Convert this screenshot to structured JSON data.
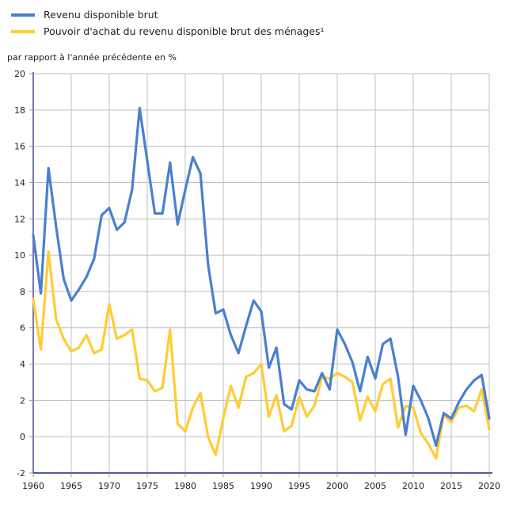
{
  "chart_data": {
    "type": "line",
    "title": "",
    "xlabel": "",
    "ylabel": "par rapport à l'année précédente en %",
    "xlim": [
      1960,
      2020
    ],
    "ylim": [
      -2,
      20
    ],
    "x_ticks": [
      1960,
      1965,
      1970,
      1975,
      1980,
      1985,
      1990,
      1995,
      2000,
      2005,
      2010,
      2015,
      2020
    ],
    "y_ticks": [
      -2,
      0,
      2,
      4,
      6,
      8,
      10,
      12,
      14,
      16,
      18,
      20
    ],
    "grid": true,
    "legend_position": "top-left",
    "x": [
      1960,
      1961,
      1962,
      1963,
      1964,
      1965,
      1966,
      1967,
      1968,
      1969,
      1970,
      1971,
      1972,
      1973,
      1974,
      1975,
      1976,
      1977,
      1978,
      1979,
      1980,
      1981,
      1982,
      1983,
      1984,
      1985,
      1986,
      1987,
      1988,
      1989,
      1990,
      1991,
      1992,
      1993,
      1994,
      1995,
      1996,
      1997,
      1998,
      1999,
      2000,
      2001,
      2002,
      2003,
      2004,
      2005,
      2006,
      2007,
      2008,
      2009,
      2010,
      2011,
      2012,
      2013,
      2014,
      2015,
      2016,
      2017,
      2018,
      2019,
      2020
    ],
    "series": [
      {
        "name": "Revenu disponible brut",
        "color": "#4a7fd0",
        "values": [
          11.1,
          7.9,
          14.8,
          11.6,
          8.7,
          7.5,
          8.1,
          8.8,
          9.8,
          12.2,
          12.6,
          11.4,
          11.8,
          13.6,
          18.1,
          15.2,
          12.3,
          12.3,
          15.1,
          11.7,
          13.6,
          15.4,
          14.5,
          9.5,
          6.8,
          7.0,
          5.6,
          4.6,
          6.1,
          7.5,
          6.9,
          3.8,
          4.9,
          1.8,
          1.5,
          3.1,
          2.6,
          2.5,
          3.5,
          2.6,
          5.9,
          5.1,
          4.1,
          2.5,
          4.4,
          3.2,
          5.1,
          5.4,
          3.3,
          0.1,
          2.8,
          2.0,
          1.0,
          -0.5,
          1.3,
          1.0,
          1.9,
          2.6,
          3.1,
          3.4,
          1.0
        ]
      },
      {
        "name": "Pouvoir d'achat du revenu disponible brut des ménages¹",
        "color": "#ffcc33",
        "values": [
          7.6,
          4.8,
          10.2,
          6.5,
          5.4,
          4.7,
          4.9,
          5.6,
          4.6,
          4.8,
          7.3,
          5.4,
          5.6,
          5.9,
          3.2,
          3.1,
          2.5,
          2.7,
          5.9,
          0.7,
          0.3,
          1.6,
          2.4,
          0.0,
          -1.0,
          1.0,
          2.8,
          1.6,
          3.3,
          3.5,
          4.0,
          1.1,
          2.3,
          0.3,
          0.6,
          2.2,
          1.1,
          1.7,
          3.3,
          3.2,
          3.5,
          3.3,
          3.0,
          0.9,
          2.2,
          1.4,
          2.9,
          3.2,
          0.5,
          1.7,
          1.6,
          0.2,
          -0.4,
          -1.2,
          1.2,
          0.8,
          1.6,
          1.7,
          1.4,
          2.6,
          0.4
        ]
      }
    ]
  }
}
